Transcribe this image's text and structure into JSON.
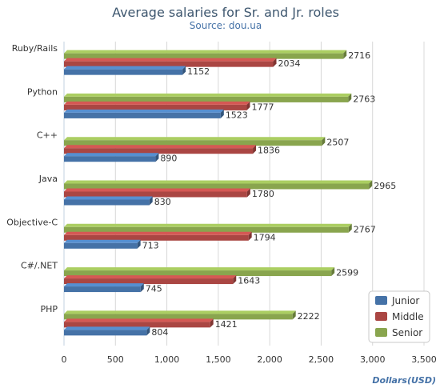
{
  "colors": {
    "junior": "#4572a7",
    "middle": "#aa4643",
    "senior": "#89a54e",
    "grid": "#d8d8d8",
    "axis": "#c0d0e0",
    "title": "#3e576f"
  },
  "chart_data": {
    "type": "bar",
    "orientation": "horizontal",
    "style": "3d",
    "title": "Average salaries for Sr. and Jr. roles",
    "subtitle": "Source: dou.ua",
    "xlabel": "Dollars(USD)",
    "ylabel": "",
    "xlim": [
      0,
      3500
    ],
    "xticks": [
      0,
      500,
      1000,
      1500,
      2000,
      2500,
      3000,
      3500
    ],
    "xtick_labels": [
      "0",
      "500",
      "1,000",
      "1,500",
      "2,000",
      "2,500",
      "3,000",
      "3,500"
    ],
    "grid": true,
    "legend_position": "bottom-right",
    "categories": [
      "Ruby/Rails",
      "Python",
      "C++",
      "Java",
      "Objective-C",
      "C#/.NET",
      "PHP"
    ],
    "series": [
      {
        "name": "Junior",
        "values": [
          1152,
          1523,
          890,
          830,
          713,
          745,
          804
        ]
      },
      {
        "name": "Middle",
        "values": [
          2034,
          1777,
          1836,
          1780,
          1794,
          1643,
          1421
        ]
      },
      {
        "name": "Senior",
        "values": [
          2716,
          2763,
          2507,
          2965,
          2767,
          2599,
          2222
        ]
      }
    ]
  }
}
